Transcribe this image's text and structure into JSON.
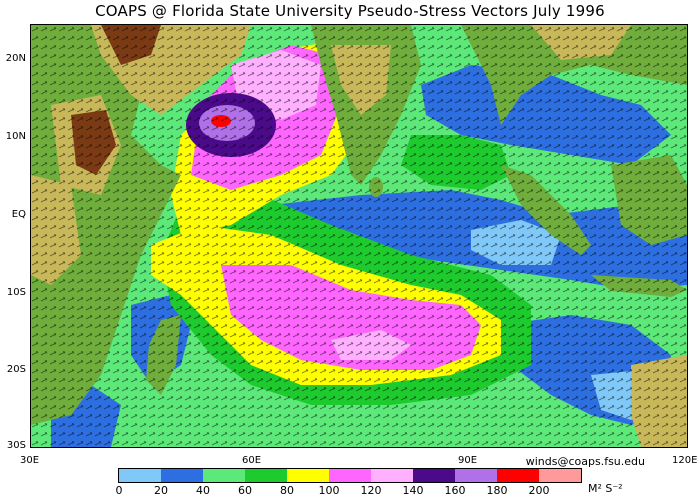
{
  "title": "COAPS @ Florida State University Pseudo-Stress Vectors  July 1996",
  "latitude_labels": [
    "20N",
    "10N",
    "EQ",
    "10S",
    "20S",
    "30S"
  ],
  "longitude_labels": [
    "30E",
    "60E",
    "90E",
    "120E"
  ],
  "contact": "winds@coaps.fsu.edu",
  "colorbar": {
    "colors": [
      "#7fc8f8",
      "#2d6fe0",
      "#5de87a",
      "#1ecb2e",
      "#ffff00",
      "#ff66ff",
      "#ffb0ff",
      "#4a0a8a",
      "#b070e8",
      "#ff0000",
      "#ff9a9a"
    ],
    "tick_labels": [
      "0",
      "20",
      "40",
      "60",
      "80",
      "100",
      "120",
      "140",
      "160",
      "180",
      "200"
    ],
    "units": "M² S⁻²"
  },
  "colors": {
    "land_low": "#6fae3c",
    "land_mid": "#c8b85a",
    "land_high": "#7a3a14",
    "coast_gray": "#c0c0c0"
  }
}
